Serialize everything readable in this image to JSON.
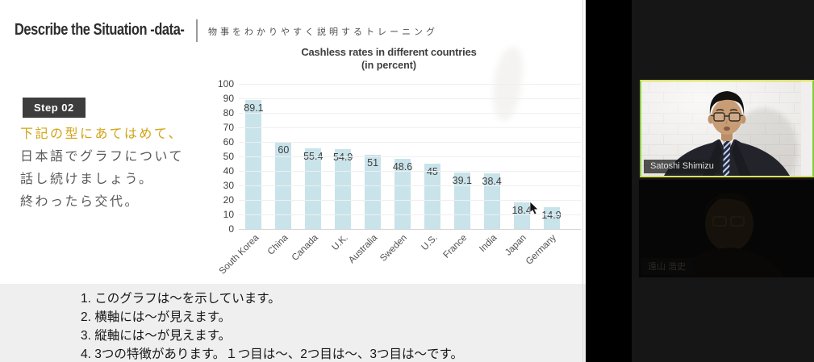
{
  "slide": {
    "header": {
      "title": "Describe the Situation -data-",
      "subtitle": "物事をわかりやすく説明するトレーニング"
    },
    "step_badge": "Step 02",
    "instructions": [
      {
        "text": "下記の型にあてはめて、",
        "highlight": true
      },
      {
        "text": "日本語でグラフについて",
        "highlight": false
      },
      {
        "text": "話し続けましょう。",
        "highlight": false
      },
      {
        "text": "終わったら交代。",
        "highlight": false
      }
    ],
    "template_lines": [
      "1. このグラフは～を示しています。",
      "2. 横軸には～が見えます。",
      "3. 縦軸には～が見えます。",
      "4. 3つの特徴があります。１つ目は～、2つ目は～、3つ目は～です。"
    ],
    "accent_color": "#d1a417"
  },
  "chart_data": {
    "type": "bar",
    "title": "Cashless rates in different countries",
    "subtitle": "(in percent)",
    "categories": [
      "South Korea",
      "China",
      "Canada",
      "U.K.",
      "Australia",
      "Sweden",
      "U.S.",
      "France",
      "India",
      "Japan",
      "Germany"
    ],
    "values": [
      89.1,
      60,
      55.4,
      54.9,
      51,
      48.6,
      45,
      39.1,
      38.4,
      18.4,
      14.9
    ],
    "y_ticks": [
      100,
      90,
      80,
      70,
      60,
      50,
      40,
      30,
      20,
      10,
      0
    ],
    "ylim": [
      0,
      100
    ],
    "xlabel": "",
    "ylabel": "",
    "grid": true,
    "legend": "none",
    "bar_color": "#c9e3ea",
    "label_color": "#3f3f3f"
  },
  "video_panel": {
    "participants": [
      {
        "name": "Satoshi Shimizu",
        "active_speaker": true
      },
      {
        "name": "遠山 浩史",
        "active_speaker": false
      }
    ],
    "active_border_color": "#c9dd4d"
  }
}
